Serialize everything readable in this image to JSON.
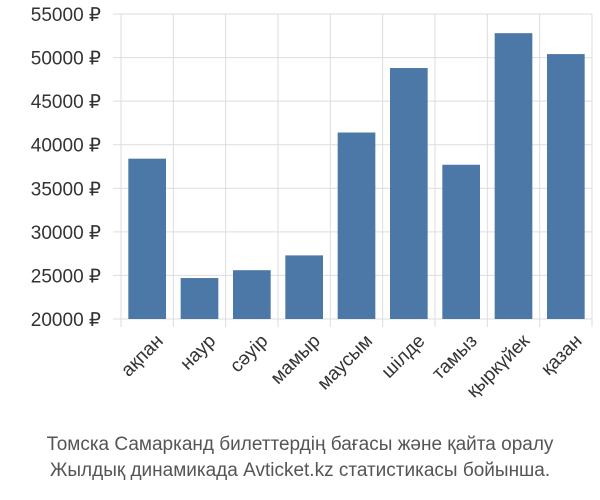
{
  "chart_data": {
    "type": "bar",
    "categories": [
      "ақпан",
      "наур",
      "сәуір",
      "мамыр",
      "маусым",
      "шілде",
      "тамыз",
      "қыркүйек",
      "қазан"
    ],
    "values": [
      38400,
      24700,
      25600,
      27300,
      41400,
      48800,
      37700,
      52800,
      50400
    ],
    "ylim": [
      20000,
      55000
    ],
    "yticks": [
      20000,
      25000,
      30000,
      35000,
      40000,
      45000,
      50000,
      55000
    ],
    "ytick_labels": [
      "20000 ₽",
      "25000 ₽",
      "30000 ₽",
      "35000 ₽",
      "40000 ₽",
      "45000 ₽",
      "50000 ₽",
      "55000 ₽"
    ],
    "grid": true,
    "bar_color": "#4c78a8",
    "grid_color": "#dddddd"
  },
  "caption": {
    "line1": "Томска Самарканд билеттердің бағасы және қайта оралу",
    "line2": "Жылдық динамикада Avticket.kz статистикасы бойынша."
  }
}
